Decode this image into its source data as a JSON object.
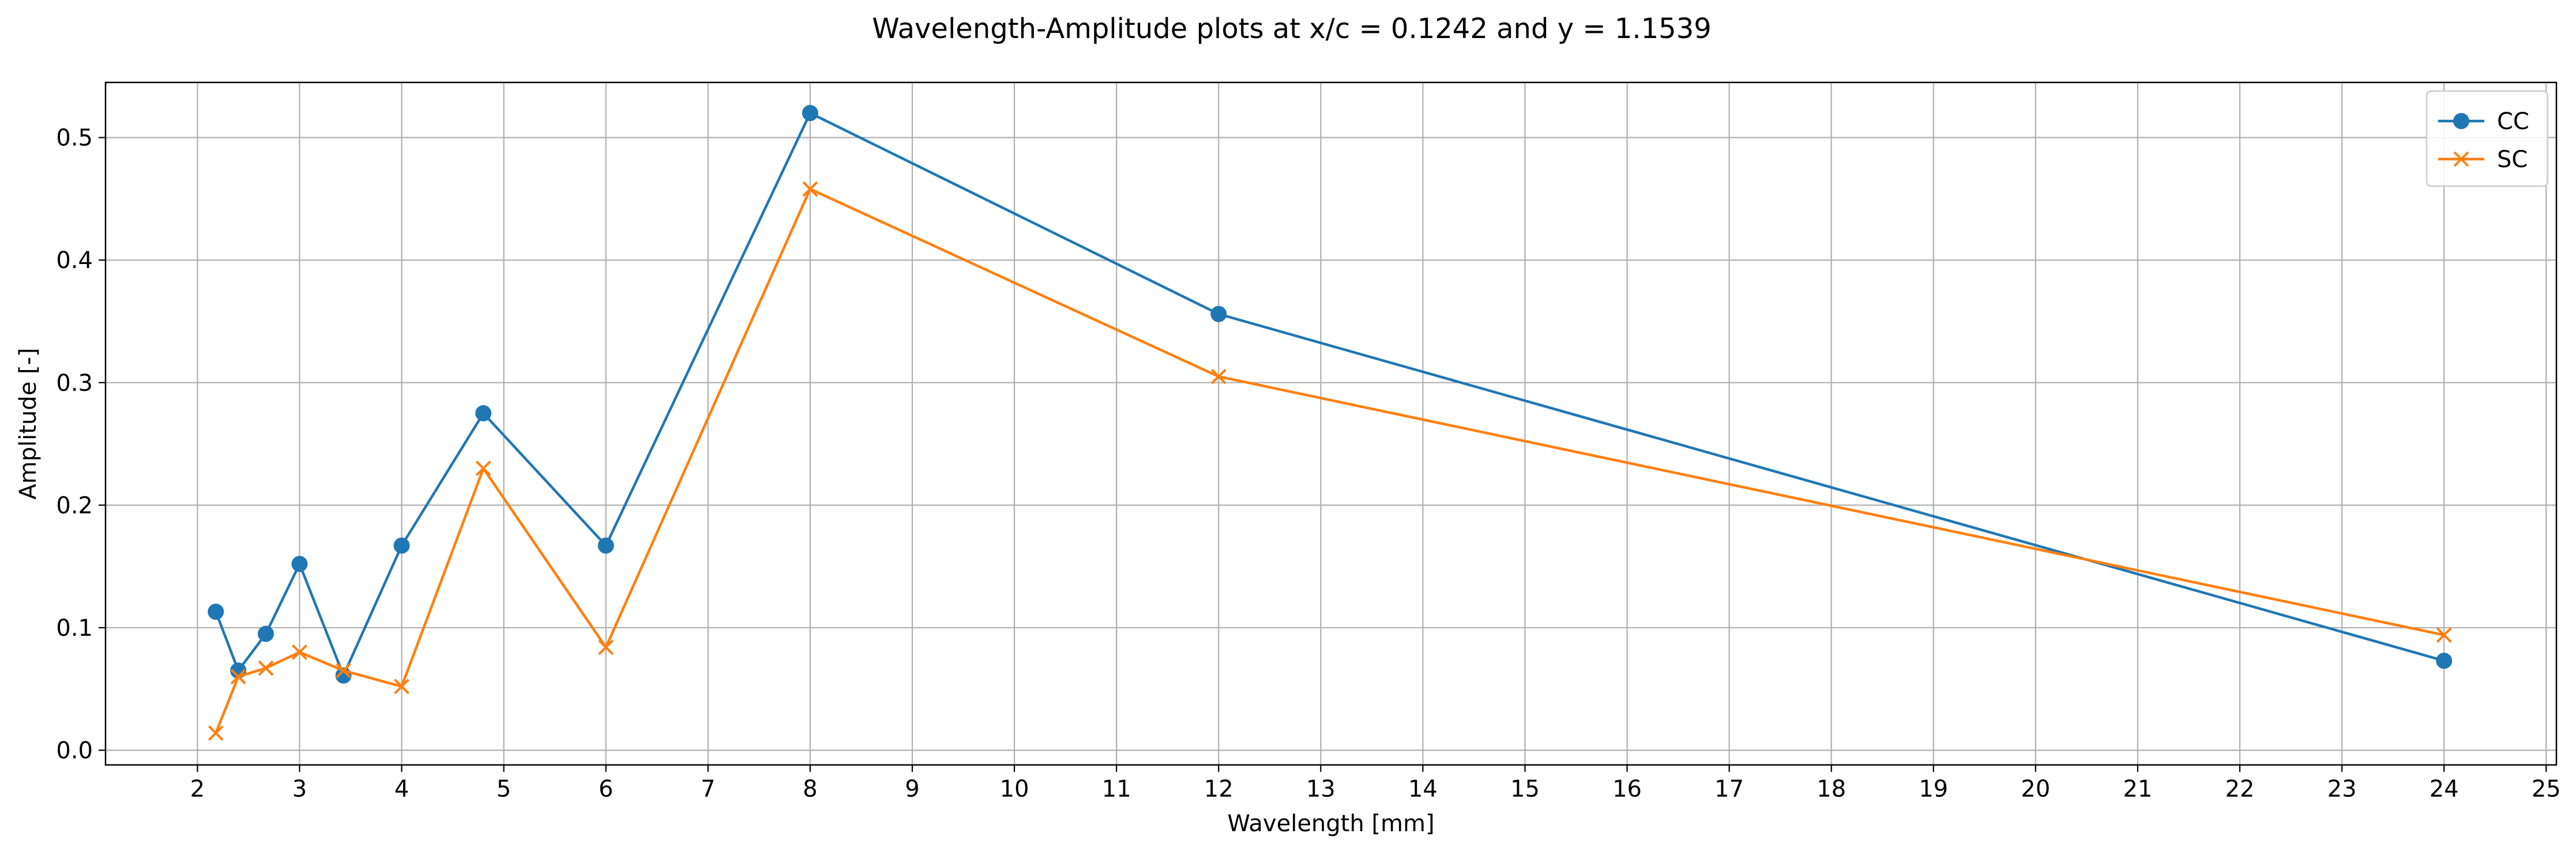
{
  "chart_data": {
    "type": "line",
    "title": "Wavelength-Amplitude plots at x/c = 0.1242 and y = 1.1539",
    "xlabel": "Wavelength [mm]",
    "ylabel": "Amplitude [-]",
    "xlim": [
      1.1,
      25.1
    ],
    "ylim": [
      -0.012,
      0.545
    ],
    "xticks": [
      2,
      3,
      4,
      5,
      6,
      7,
      8,
      9,
      10,
      11,
      12,
      13,
      14,
      15,
      16,
      17,
      18,
      19,
      20,
      21,
      22,
      23,
      24,
      25
    ],
    "yticks": [
      0.0,
      0.1,
      0.2,
      0.3,
      0.4,
      0.5
    ],
    "ytick_labels": [
      "0.0",
      "0.1",
      "0.2",
      "0.3",
      "0.4",
      "0.5"
    ],
    "grid": true,
    "legend_position": "top-right",
    "series": [
      {
        "name": "CC",
        "color": "#1f77b4",
        "marker": "circle",
        "x": [
          2.18,
          2.4,
          2.67,
          3.0,
          3.43,
          4.0,
          4.8,
          6.0,
          8.0,
          12.0,
          24.0
        ],
        "y": [
          0.113,
          0.065,
          0.095,
          0.152,
          0.061,
          0.167,
          0.275,
          0.167,
          0.52,
          0.356,
          0.073
        ]
      },
      {
        "name": "SC",
        "color": "#ff7f0e",
        "marker": "x",
        "x": [
          2.18,
          2.4,
          2.67,
          3.0,
          3.43,
          4.0,
          4.8,
          6.0,
          8.0,
          12.0,
          24.0
        ],
        "y": [
          0.014,
          0.06,
          0.067,
          0.08,
          0.065,
          0.052,
          0.23,
          0.084,
          0.458,
          0.305,
          0.094
        ]
      }
    ]
  }
}
